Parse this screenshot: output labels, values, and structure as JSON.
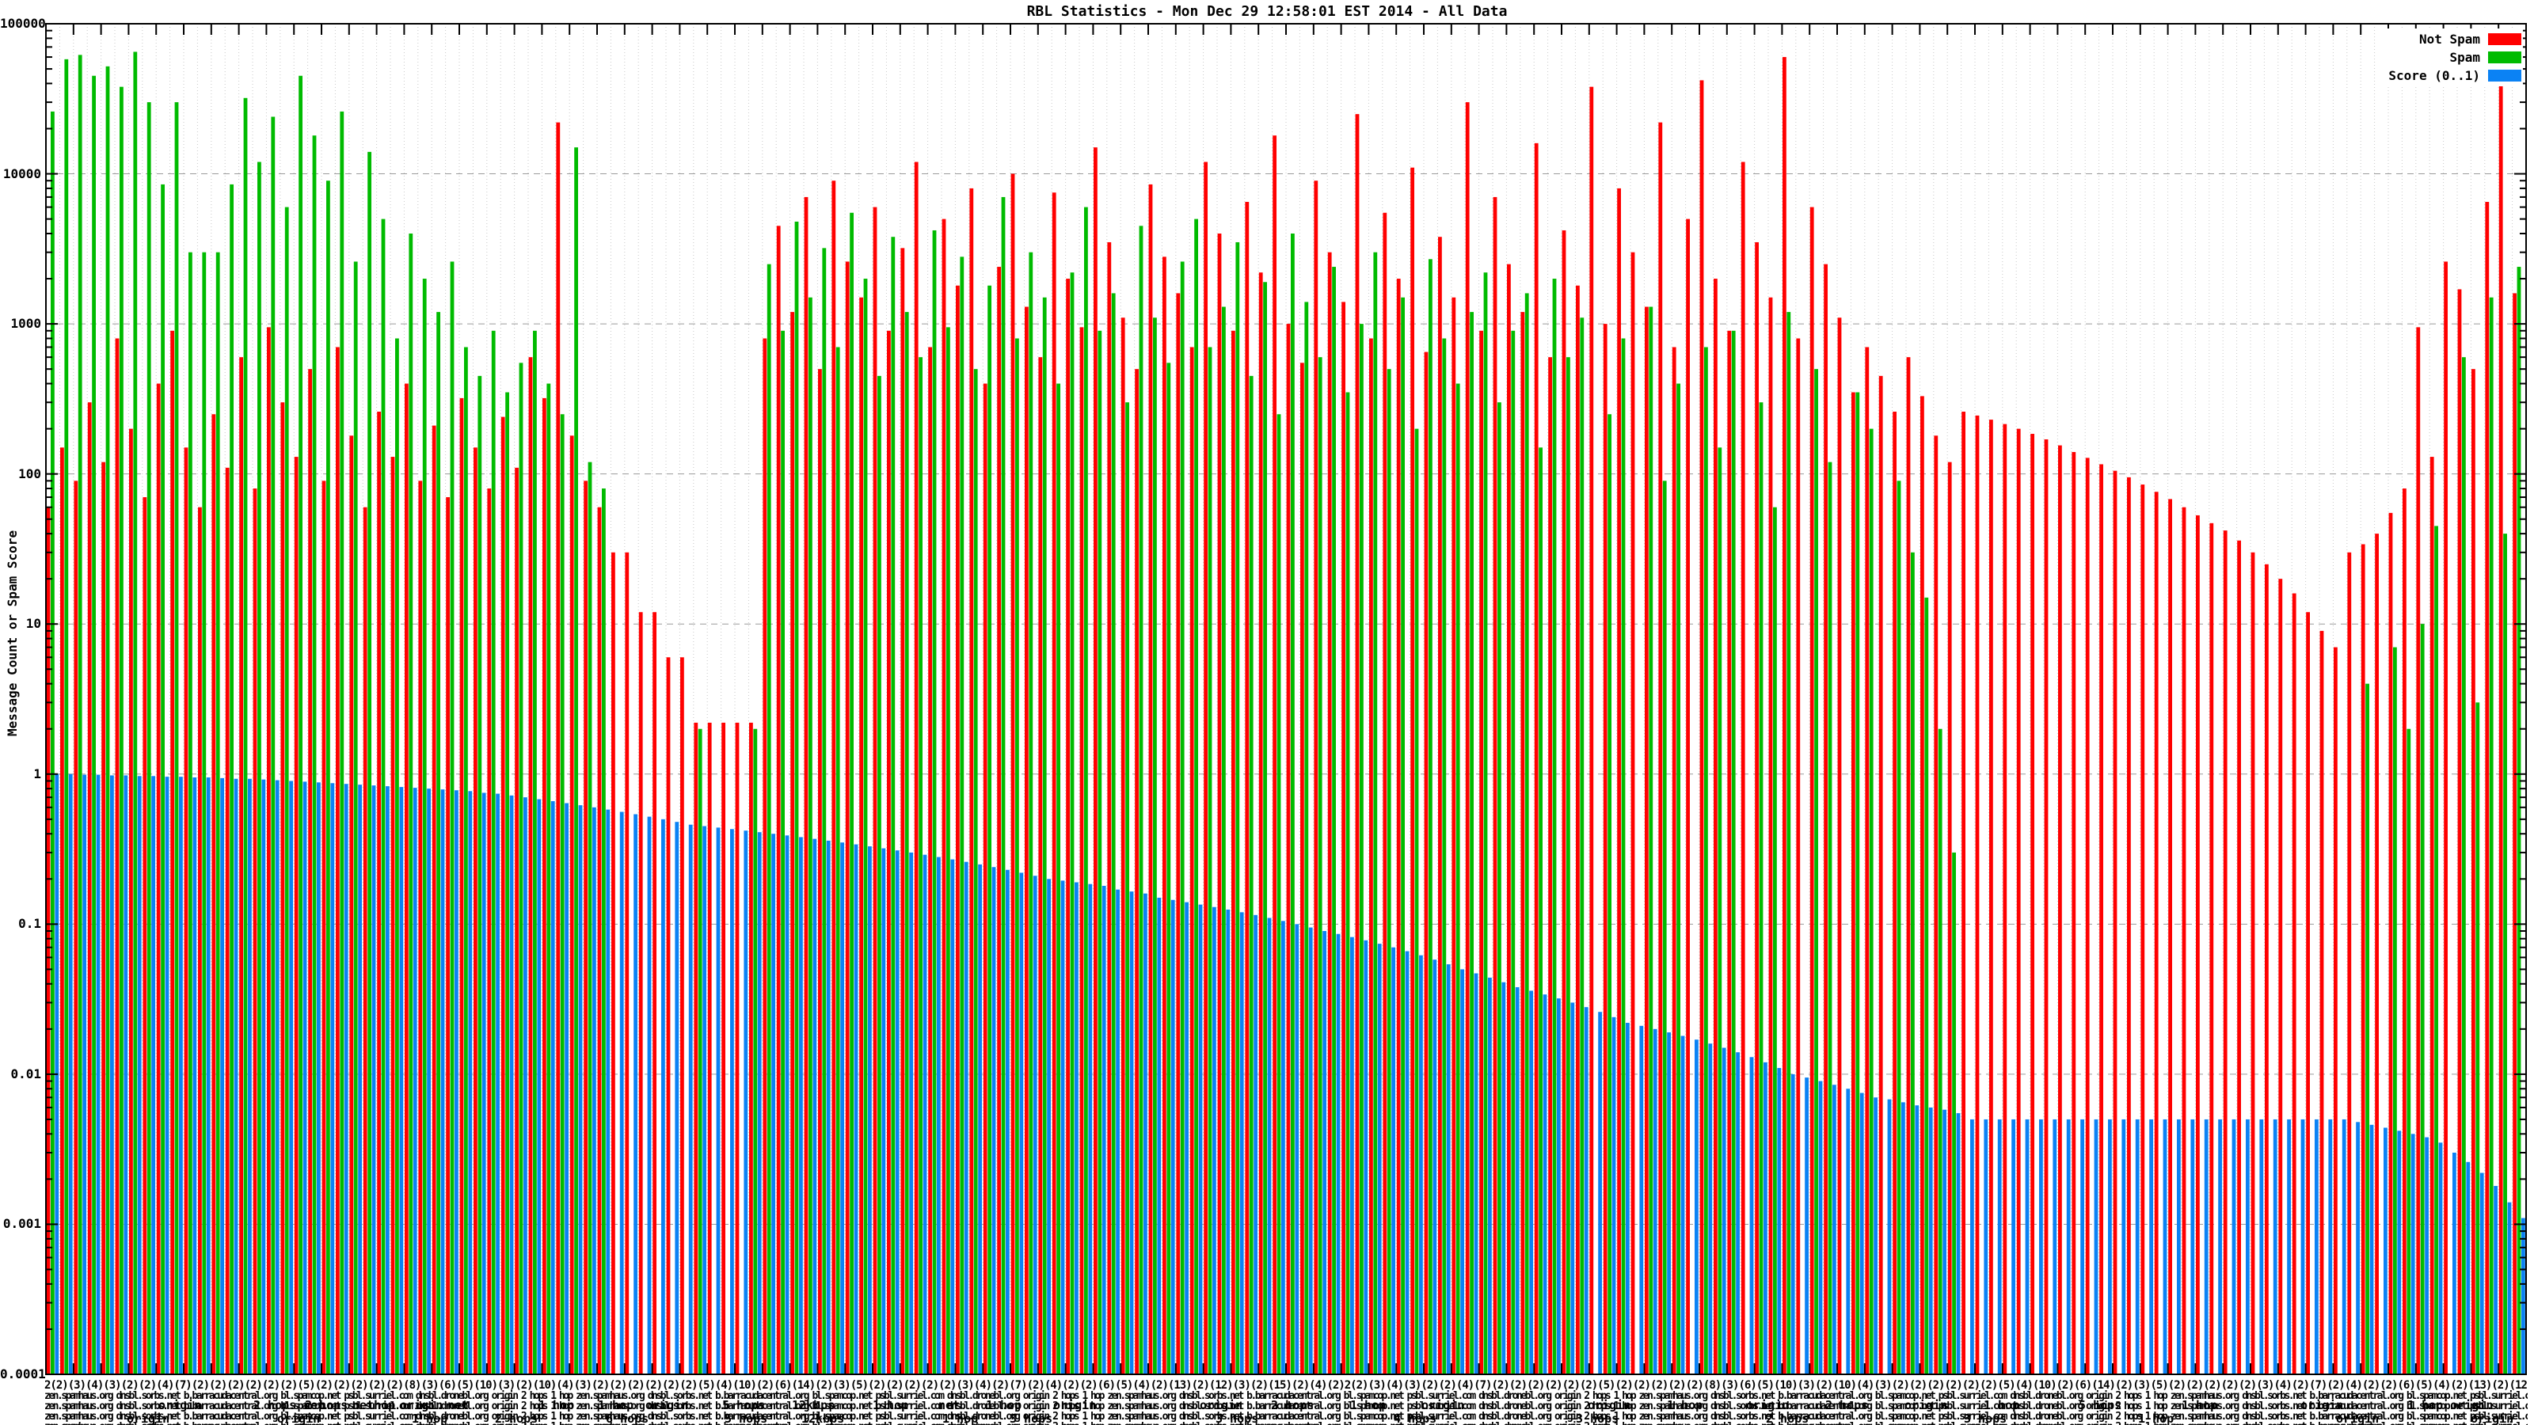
{
  "title": "RBL Statistics - Mon Dec 29 12:58:01 EST 2014 - All Data",
  "legend": {
    "entries": [
      {
        "label": "Not Spam",
        "color": "#ff0000"
      },
      {
        "label": "Spam",
        "color": "#00bb00"
      },
      {
        "label": "Score (0..1)",
        "color": "#0b82f4"
      }
    ]
  },
  "y_axis": {
    "label": "Message Count or Spam Score",
    "tick_labels": [
      "100000",
      "10000",
      "1000",
      "100",
      "10",
      "1",
      "0.1",
      "0.01",
      "0.001",
      "0.0001"
    ]
  },
  "x_axis": {
    "smear_counts_line": "2(2)(3)(4)(3)(2)(2)(4)(7)(2)(2)(2)(2)(2)(2)(5)(2)(2)(2)(2)(2)(8)(3)(6)(5)(10)(3)(2)(10)(4)(3)(2)(2)(2)(2)(2)(2)(5)(4)(10)(2)(6)(14)(2)(3)(5)(2)(2)(2)(2)(2)(3)(4)(2)(7)(2)(4)(2)(2)(6)(5)(4)(2)(13)(2)(12)(3)(2)(15)(2)(4)(2)",
    "smear_text_illegible": "zen.spamhaus.org dnsbl.sorbs.net b.barracudacentral.org bl.spamcop.net psbl.surriel.com dnsbl.dronebl.org origin 2 hops 1 hop ",
    "fragments": [
      {
        "t": "origin",
        "x": 200,
        "row": 0
      },
      {
        "t": "2 hops net",
        "x": 320,
        "row": 0
      },
      {
        "t": "2 hops",
        "x": 385,
        "row": 0
      },
      {
        "t": "nethop",
        "x": 445,
        "row": 0
      },
      {
        "t": "origin",
        "x": 505,
        "row": 0
      },
      {
        "t": "net",
        "x": 565,
        "row": 0
      },
      {
        "t": "1 hop",
        "x": 680,
        "row": 0
      },
      {
        "t": "1 hop",
        "x": 755,
        "row": 0
      },
      {
        "t": "origin",
        "x": 815,
        "row": 0
      },
      {
        "t": "5 hops",
        "x": 912,
        "row": 0
      },
      {
        "t": "12kbps",
        "x": 1000,
        "row": 0
      },
      {
        "t": "1 hop",
        "x": 1102,
        "row": 0
      },
      {
        "t": "net",
        "x": 1185,
        "row": 0
      },
      {
        "t": "1 hop",
        "x": 1245,
        "row": 0
      },
      {
        "t": "origin",
        "x": 1330,
        "row": 0
      },
      {
        "t": "origin",
        "x": 1515,
        "row": 0
      },
      {
        "t": "2 hops",
        "x": 1605,
        "row": 0
      },
      {
        "t": "1 hop",
        "x": 1705,
        "row": 0
      },
      {
        "t": "origin",
        "x": 1795,
        "row": 0
      },
      {
        "t": "origin",
        "x": 2005,
        "row": 0
      },
      {
        "t": "1 hop",
        "x": 2105,
        "row": 0
      },
      {
        "t": "origin",
        "x": 2205,
        "row": 0
      },
      {
        "t": "2 hops",
        "x": 2305,
        "row": 0
      },
      {
        "t": "origin",
        "x": 2405,
        "row": 0
      },
      {
        "t": "1 hop",
        "x": 2505,
        "row": 0
      },
      {
        "t": "5 hops",
        "x": 2625,
        "row": 0
      },
      {
        "t": "1 hop",
        "x": 2755,
        "row": 0
      },
      {
        "t": "origin",
        "x": 2905,
        "row": 0
      },
      {
        "t": "1 hop origin",
        "x": 3040,
        "row": 0
      },
      {
        "t": "origin",
        "x": 160,
        "row": 1
      },
      {
        "t": "origin",
        "x": 350,
        "row": 1
      },
      {
        "t": "1 hop",
        "x": 520,
        "row": 1
      },
      {
        "t": "2 hops",
        "x": 625,
        "row": 1
      },
      {
        "t": "6 hops",
        "x": 765,
        "row": 1
      },
      {
        "t": "5 hops",
        "x": 915,
        "row": 1
      },
      {
        "t": "12kbps",
        "x": 1012,
        "row": 1
      },
      {
        "t": "1 hop",
        "x": 1190,
        "row": 1
      },
      {
        "t": "3 hops",
        "x": 1275,
        "row": 1
      },
      {
        "t": "3 hops",
        "x": 1535,
        "row": 1
      },
      {
        "t": "4 hops",
        "x": 1760,
        "row": 1
      },
      {
        "t": "3 hops",
        "x": 1990,
        "row": 1
      },
      {
        "t": "2 hops",
        "x": 2230,
        "row": 1
      },
      {
        "t": "3 hops",
        "x": 2480,
        "row": 1
      },
      {
        "t": "1 hop",
        "x": 2700,
        "row": 1
      },
      {
        "t": "origin",
        "x": 2950,
        "row": 1
      },
      {
        "t": "origin",
        "x": 3120,
        "row": 1
      }
    ]
  },
  "chart_data": {
    "type": "bar",
    "style": "impulse-triples",
    "title": "RBL Statistics - Mon Dec 29 12:58:01 EST 2014 - All Data",
    "xlabel": "",
    "ylabel": "Message Count or Spam Score",
    "y_scale": "log10",
    "ylim": [
      0.0001,
      100000
    ],
    "grid": true,
    "legend_position": "top-right",
    "colors": {
      "not_spam": "#ff0000",
      "spam": "#00bb00",
      "score": "#0b82f4"
    },
    "series_names": [
      "Not Spam",
      "Spam",
      "Score (0..1)"
    ],
    "not_spam": [
      60,
      150,
      90,
      300,
      120,
      800,
      200,
      70,
      400,
      900,
      150,
      60,
      250,
      110,
      600,
      80,
      950,
      300,
      130,
      500,
      90,
      700,
      180,
      60,
      260,
      130,
      400,
      90,
      210,
      70,
      320,
      150,
      80,
      240,
      110,
      600,
      320,
      22000,
      180,
      90,
      60,
      30,
      30,
      12,
      12,
      6,
      6,
      2.2,
      2.2,
      2.2,
      2.2,
      2.2,
      800,
      4500,
      1200,
      7000,
      500,
      9000,
      2600,
      1500,
      6000,
      900,
      3200,
      12000,
      700,
      5000,
      1800,
      8000,
      400,
      2400,
      10000,
      1300,
      600,
      7500,
      2000,
      950,
      15000,
      3500,
      1100,
      500,
      8500,
      2800,
      1600,
      700,
      12000,
      4000,
      900,
      6500,
      2200,
      18000,
      1000,
      550,
      9000,
      3000,
      1400,
      25000,
      800,
      5500,
      2000,
      11000,
      650,
      3800,
      1500,
      30000,
      900,
      7000,
      2500,
      1200,
      16000,
      600,
      4200,
      1800,
      38000,
      1000,
      8000,
      3000,
      1300,
      22000,
      700,
      5000,
      42000,
      2000,
      900,
      12000,
      3500,
      1500,
      60000,
      800,
      6000,
      2500,
      1100,
      350,
      700,
      450,
      260,
      600,
      330,
      180,
      120,
      260,
      245,
      230,
      215,
      200,
      185,
      170,
      155,
      140,
      128,
      116,
      105,
      95,
      85,
      76,
      68,
      60,
      53,
      47,
      42,
      36,
      30,
      25,
      20,
      16,
      12,
      9,
      7,
      30,
      34,
      40,
      55,
      80,
      950,
      130,
      2600,
      1700,
      500,
      6500,
      52000,
      1600
    ],
    "spam": [
      26000,
      58000,
      62000,
      45000,
      52000,
      38000,
      65000,
      30000,
      8500,
      30000,
      3000,
      3000,
      3000,
      8500,
      32000,
      12000,
      24000,
      6000,
      45000,
      18000,
      9000,
      26000,
      2600,
      14000,
      5000,
      800,
      4000,
      2000,
      1200,
      2600,
      700,
      450,
      900,
      350,
      550,
      900,
      400,
      250,
      15000,
      120,
      80,
      0,
      0,
      0,
      0,
      0,
      0,
      2,
      0,
      0,
      0,
      2,
      2500,
      900,
      4800,
      1500,
      3200,
      700,
      5500,
      2000,
      450,
      3800,
      1200,
      600,
      4200,
      950,
      2800,
      500,
      1800,
      7000,
      800,
      3000,
      1500,
      400,
      2200,
      6000,
      900,
      1600,
      300,
      4500,
      1100,
      550,
      2600,
      5000,
      700,
      1300,
      3500,
      450,
      1900,
      250,
      4000,
      1400,
      600,
      2400,
      350,
      1000,
      3000,
      500,
      1500,
      200,
      2700,
      800,
      400,
      1200,
      2200,
      300,
      900,
      1600,
      150,
      2000,
      600,
      1100,
      0,
      250,
      800,
      0,
      1300,
      90,
      400,
      0,
      700,
      150,
      900,
      0,
      300,
      60,
      1200,
      0,
      500,
      120,
      0,
      350,
      200,
      0,
      90,
      30,
      15,
      2,
      0.3,
      0,
      0,
      0,
      0,
      0,
      0,
      0,
      0,
      0,
      0,
      0,
      0,
      0,
      0,
      0,
      0,
      0,
      0,
      0,
      0,
      0,
      0,
      0,
      0,
      0,
      0,
      0,
      0,
      0,
      4,
      0,
      7,
      2,
      10,
      45,
      0,
      600,
      3,
      1500,
      40,
      2400
    ],
    "score": [
      1.0,
      1.0,
      0.99,
      0.99,
      0.98,
      0.98,
      0.97,
      0.97,
      0.96,
      0.96,
      0.95,
      0.95,
      0.94,
      0.93,
      0.93,
      0.92,
      0.91,
      0.9,
      0.89,
      0.88,
      0.87,
      0.86,
      0.85,
      0.84,
      0.83,
      0.82,
      0.81,
      0.8,
      0.79,
      0.78,
      0.77,
      0.75,
      0.74,
      0.72,
      0.7,
      0.68,
      0.66,
      0.64,
      0.62,
      0.6,
      0.58,
      0.56,
      0.54,
      0.52,
      0.5,
      0.48,
      0.46,
      0.45,
      0.44,
      0.43,
      0.42,
      0.41,
      0.4,
      0.39,
      0.38,
      0.37,
      0.36,
      0.35,
      0.34,
      0.33,
      0.32,
      0.31,
      0.3,
      0.29,
      0.28,
      0.27,
      0.26,
      0.25,
      0.24,
      0.23,
      0.22,
      0.21,
      0.2,
      0.195,
      0.19,
      0.185,
      0.18,
      0.17,
      0.165,
      0.16,
      0.15,
      0.145,
      0.14,
      0.135,
      0.13,
      0.125,
      0.12,
      0.115,
      0.11,
      0.105,
      0.1,
      0.095,
      0.09,
      0.086,
      0.082,
      0.078,
      0.074,
      0.07,
      0.066,
      0.062,
      0.058,
      0.054,
      0.05,
      0.047,
      0.044,
      0.041,
      0.038,
      0.036,
      0.034,
      0.032,
      0.03,
      0.028,
      0.026,
      0.024,
      0.022,
      0.021,
      0.02,
      0.019,
      0.018,
      0.017,
      0.016,
      0.015,
      0.014,
      0.013,
      0.012,
      0.011,
      0.01,
      0.0095,
      0.009,
      0.0085,
      0.008,
      0.0075,
      0.007,
      0.0068,
      0.0065,
      0.0062,
      0.006,
      0.0058,
      0.0055,
      0.005,
      0.005,
      0.005,
      0.005,
      0.005,
      0.005,
      0.005,
      0.005,
      0.005,
      0.005,
      0.005,
      0.005,
      0.005,
      0.005,
      0.005,
      0.005,
      0.005,
      0.005,
      0.005,
      0.005,
      0.005,
      0.005,
      0.005,
      0.005,
      0.005,
      0.005,
      0.005,
      0.005,
      0.0048,
      0.0046,
      0.0044,
      0.0042,
      0.004,
      0.0038,
      0.0035,
      0.003,
      0.0026,
      0.0022,
      0.0018,
      0.0014,
      0.0011
    ]
  }
}
